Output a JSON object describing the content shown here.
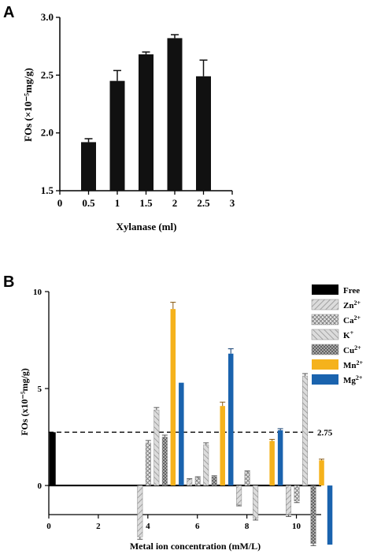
{
  "chart_data": [
    {
      "panel": "A",
      "type": "bar",
      "xlabel": "Xylanase (ml)",
      "ylabel": "FOs (×10⁻⁵mg/g)",
      "xlim": [
        0,
        3
      ],
      "ylim": [
        1.5,
        3.0
      ],
      "x_ticks": [
        "0",
        "0.5",
        "1",
        "1.5",
        "2",
        "2.5",
        "3"
      ],
      "y_ticks": [
        "1.5",
        "2.0",
        "2.5",
        "3.0"
      ],
      "x": [
        0.5,
        1,
        1.5,
        2,
        2.5
      ],
      "values": [
        1.92,
        2.45,
        2.68,
        2.82,
        2.49
      ],
      "errors": [
        0.03,
        0.09,
        0.02,
        0.03,
        0.14
      ],
      "bar_color": "#111111"
    },
    {
      "panel": "B",
      "type": "bar",
      "xlabel": "Metal ion concentration (mM/L)",
      "ylabel": "FOs (x10⁻⁵mg/g)",
      "xlim": [
        0,
        11
      ],
      "ylim": [
        -1.5,
        10
      ],
      "x_ticks": [
        "0",
        "2",
        "4",
        "6",
        "8",
        "10"
      ],
      "y_ticks": [
        "0",
        "5",
        "10"
      ],
      "reference_line": {
        "value": 2.75,
        "label": "2.75"
      },
      "legend_position": "top-right",
      "free": {
        "name": "Free",
        "x": 0.15,
        "value": 2.75,
        "color": "#000000"
      },
      "groups": [
        4,
        6,
        8,
        10
      ],
      "series": [
        {
          "name": "Zn",
          "sup": "2+",
          "pattern": "hatch-diag",
          "color": "#c8c8c8",
          "values": [
            -2.65,
            0.3,
            -1.0,
            -1.5
          ],
          "errors": [
            0.12,
            0.05,
            0.05,
            0.1
          ]
        },
        {
          "name": "Ca",
          "sup": "2+",
          "pattern": "crosshatch",
          "color": "#c8c8c8",
          "values": [
            2.2,
            0.4,
            0.7,
            -0.8
          ],
          "errors": [
            0.12,
            0.05,
            0.05,
            0.08
          ]
        },
        {
          "name": "K",
          "sup": "+",
          "pattern": "hatch-rev",
          "color": "#c8c8c8",
          "values": [
            3.9,
            2.1,
            -1.7,
            5.65
          ],
          "errors": [
            0.12,
            0.1,
            0.08,
            0.12
          ]
        },
        {
          "name": "Cu",
          "sup": "2+",
          "pattern": "crosshatch-dark",
          "color": "#a8a8a8",
          "values": [
            2.5,
            0.45,
            0.0,
            -3.0
          ],
          "errors": [
            0.1,
            0.05,
            0.0,
            0.1
          ]
        },
        {
          "name": "Mn",
          "sup": "2+",
          "pattern": "solid",
          "color": "#F5B21C",
          "values": [
            9.1,
            4.1,
            2.3,
            1.3
          ],
          "errors": [
            0.35,
            0.2,
            0.08,
            0.06
          ]
        },
        {
          "name": "Mg",
          "sup": "2+",
          "pattern": "solid",
          "color": "#1A63AE",
          "values": [
            5.3,
            6.8,
            2.85,
            -3.05
          ],
          "errors": [
            0.0,
            0.25,
            0.08,
            0.0
          ]
        }
      ]
    }
  ],
  "panels": {
    "a_letter": "A",
    "b_letter": "B"
  }
}
